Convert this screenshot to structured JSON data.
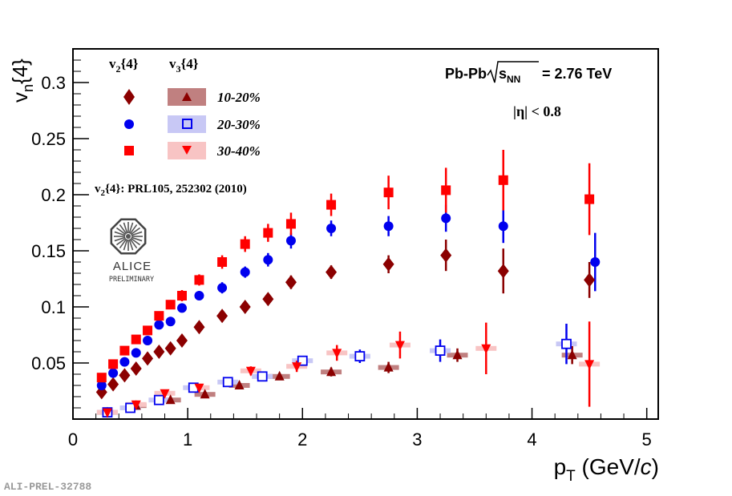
{
  "chart_data": {
    "type": "scatter",
    "title": "",
    "xlabel": "p_T (GeV/c)",
    "ylabel": "v_n{4}",
    "xlim": [
      0,
      5.1
    ],
    "ylim": [
      0,
      0.33
    ],
    "x_ticks": [
      0,
      1,
      2,
      3,
      4,
      5
    ],
    "y_ticks": [
      0.05,
      0.1,
      0.15,
      0.2,
      0.25,
      0.3
    ],
    "x_tick_labels": [
      "0",
      "1",
      "2",
      "3",
      "4",
      "5"
    ],
    "y_tick_labels": [
      "0.05",
      "0.1",
      "0.15",
      "0.2",
      "0.25",
      "0.3"
    ],
    "legend": {
      "position": "top-left",
      "col_v2": "v2{4}",
      "col_v3": "v3{4}",
      "labels": [
        "10-20%",
        "20-30%",
        "30-40%"
      ]
    },
    "annotations": {
      "system": "Pb-Pb",
      "energy": "= 2.76 TeV",
      "eta": "|η| < 0.8",
      "reference": "v2{4}: PRL105, 252302 (2010)",
      "logo_main": "ALICE",
      "logo_sub": "PRELIMINARY",
      "figure_id": "ALI-PREL-32788"
    },
    "series": [
      {
        "name": "v2{4} 10-20%",
        "marker": "diamond",
        "color": "#8b0000",
        "x": [
          0.25,
          0.35,
          0.45,
          0.55,
          0.65,
          0.75,
          0.85,
          0.95,
          1.1,
          1.3,
          1.5,
          1.7,
          1.9,
          2.25,
          2.75,
          3.25,
          3.75,
          4.5
        ],
        "y": [
          0.024,
          0.031,
          0.039,
          0.045,
          0.054,
          0.06,
          0.063,
          0.07,
          0.082,
          0.092,
          0.1,
          0.107,
          0.122,
          0.131,
          0.138,
          0.146,
          0.132,
          0.124
        ],
        "err": [
          0.003,
          0.003,
          0.003,
          0.003,
          0.003,
          0.003,
          0.003,
          0.004,
          0.004,
          0.004,
          0.004,
          0.005,
          0.006,
          0.006,
          0.008,
          0.014,
          0.02,
          0.016
        ]
      },
      {
        "name": "v2{4} 20-30%",
        "marker": "circle",
        "color": "#0000ee",
        "x": [
          0.25,
          0.35,
          0.45,
          0.55,
          0.65,
          0.75,
          0.85,
          0.95,
          1.1,
          1.3,
          1.5,
          1.7,
          1.9,
          2.25,
          2.75,
          3.25,
          3.75,
          4.55
        ],
        "y": [
          0.03,
          0.041,
          0.051,
          0.059,
          0.07,
          0.084,
          0.087,
          0.099,
          0.11,
          0.117,
          0.131,
          0.142,
          0.159,
          0.17,
          0.172,
          0.179,
          0.172,
          0.14
        ],
        "err": [
          0.003,
          0.003,
          0.003,
          0.003,
          0.003,
          0.004,
          0.004,
          0.004,
          0.004,
          0.005,
          0.005,
          0.006,
          0.007,
          0.007,
          0.009,
          0.012,
          0.015,
          0.026
        ]
      },
      {
        "name": "v2{4} 30-40%",
        "marker": "square",
        "color": "#ff0000",
        "x": [
          0.25,
          0.35,
          0.45,
          0.55,
          0.65,
          0.75,
          0.85,
          0.95,
          1.1,
          1.3,
          1.5,
          1.7,
          1.9,
          2.25,
          2.75,
          3.25,
          3.75,
          4.5
        ],
        "y": [
          0.037,
          0.049,
          0.061,
          0.071,
          0.079,
          0.092,
          0.102,
          0.11,
          0.124,
          0.14,
          0.156,
          0.166,
          0.174,
          0.191,
          0.202,
          0.204,
          0.213,
          0.196
        ],
        "err": [
          0.003,
          0.003,
          0.003,
          0.003,
          0.003,
          0.004,
          0.004,
          0.005,
          0.005,
          0.006,
          0.007,
          0.008,
          0.01,
          0.01,
          0.015,
          0.02,
          0.027,
          0.032
        ]
      },
      {
        "name": "v3{4} 10-20%",
        "marker": "triangle-up",
        "color": "#8b0000",
        "x": [
          0.3,
          0.55,
          0.85,
          1.15,
          1.45,
          1.8,
          2.25,
          2.75,
          3.35,
          4.35
        ],
        "y": [
          0.006,
          0.012,
          0.017,
          0.022,
          0.03,
          0.038,
          0.042,
          0.046,
          0.057,
          0.057
        ],
        "err": [
          0.002,
          0.002,
          0.002,
          0.002,
          0.003,
          0.003,
          0.004,
          0.005,
          0.006,
          0.008
        ]
      },
      {
        "name": "v3{4} 20-30%",
        "marker": "open-square",
        "color": "#0000ee",
        "x": [
          0.3,
          0.5,
          0.75,
          1.05,
          1.35,
          1.65,
          2.0,
          2.5,
          3.2,
          4.3
        ],
        "y": [
          0.006,
          0.01,
          0.017,
          0.028,
          0.033,
          0.038,
          0.052,
          0.056,
          0.061,
          0.067
        ],
        "err": [
          0.002,
          0.002,
          0.002,
          0.003,
          0.003,
          0.003,
          0.004,
          0.006,
          0.01,
          0.018
        ]
      },
      {
        "name": "v3{4} 30-40%",
        "marker": "triangle-down",
        "color": "#ff0000",
        "x": [
          0.3,
          0.55,
          0.8,
          1.1,
          1.55,
          1.95,
          2.3,
          2.85,
          3.6,
          4.5
        ],
        "y": [
          0.006,
          0.013,
          0.023,
          0.028,
          0.043,
          0.047,
          0.059,
          0.066,
          0.063,
          0.049
        ],
        "err": [
          0.002,
          0.002,
          0.003,
          0.003,
          0.004,
          0.005,
          0.007,
          0.012,
          0.023,
          0.038
        ]
      }
    ]
  }
}
